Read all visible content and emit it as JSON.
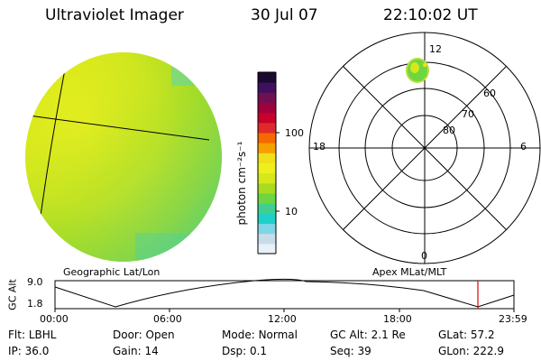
{
  "header": {
    "title": "Ultraviolet Imager",
    "date": "30 Jul 07",
    "time": "22:10:02 UT"
  },
  "colorbar": {
    "label": "photon cm⁻²s⁻¹",
    "ticks": [
      "100",
      "10"
    ],
    "colors": [
      "#e8f0f8",
      "#c8dce8",
      "#7fd6e6",
      "#1fd0c8",
      "#3fd090",
      "#6ed640",
      "#a8dc20",
      "#d6e81a",
      "#eef01c",
      "#f0e01a",
      "#f5a000",
      "#f46a00",
      "#e02a2a",
      "#c8002c",
      "#a0003c",
      "#701050",
      "#401060",
      "#1a0a30"
    ]
  },
  "images": {
    "left_caption": "Geographic Lat/Lon",
    "right_caption": "Apex MLat/MLT"
  },
  "polar": {
    "lat_labels": [
      "80",
      "70",
      "60"
    ],
    "mlt_labels": {
      "top": "12",
      "bottom": "0",
      "left": "18",
      "right": "6"
    }
  },
  "altitude_plot": {
    "ylabel": "GC Alt",
    "yticks": [
      "9.0",
      "1.8"
    ],
    "xticks": [
      "00:00",
      "06:00",
      "12:00",
      "18:00",
      "23:59"
    ],
    "marker_color": "#e00000"
  },
  "status": {
    "row1": [
      {
        "label": "Flt:",
        "value": "LBHL"
      },
      {
        "label": "Door:",
        "value": "Open"
      },
      {
        "label": "Mode:",
        "value": "Normal"
      },
      {
        "label": "GC Alt:",
        "value": "2.1 Re"
      },
      {
        "label": "GLat:",
        "value": "57.2"
      }
    ],
    "row2": [
      {
        "label": "IP:",
        "value": "36.0"
      },
      {
        "label": "Gain:",
        "value": "14"
      },
      {
        "label": "Dsp:",
        "value": "0.1"
      },
      {
        "label": "Seq:",
        "value": "39"
      },
      {
        "label": "GLon:",
        "value": "222.9"
      }
    ]
  }
}
